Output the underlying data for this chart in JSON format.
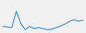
{
  "values": [
    62,
    61,
    60,
    91,
    68,
    56,
    62,
    58,
    60,
    58,
    56,
    57,
    60,
    63,
    67,
    72,
    75,
    72,
    74
  ],
  "line_color": "#1a7abf",
  "background_color": "#f0f0f0",
  "linewidth": 0.8
}
